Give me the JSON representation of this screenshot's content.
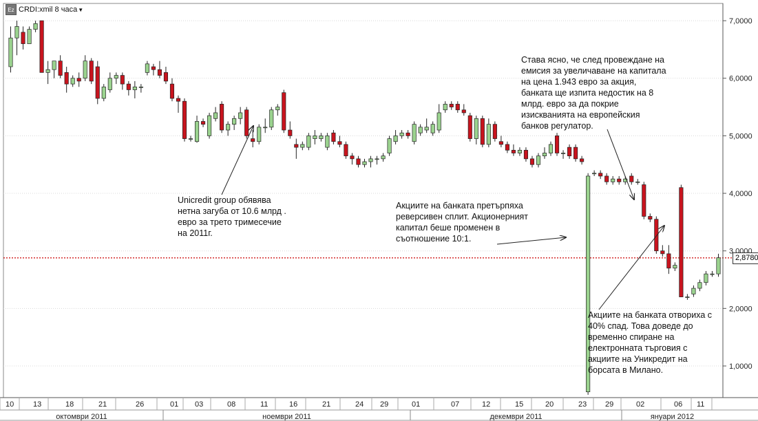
{
  "header": {
    "logo_text": "Ez",
    "ticker_label": "CRDI:xmil 8 часа",
    "dropdown_icon": "caret-down-icon"
  },
  "colors": {
    "up": "#9bd38f",
    "down": "#c8141e",
    "last_price_line": "#cc0000",
    "grid": "#d8d8d8"
  },
  "last_price": {
    "value": 2.878,
    "label": "2,8780"
  },
  "chart_data": {
    "type": "candlestick",
    "title": "",
    "xlabel": "",
    "ylabel": "",
    "ylim": [
      0.45,
      7.3
    ],
    "yticks": [
      {
        "value": 1,
        "label": "1,0000"
      },
      {
        "value": 2,
        "label": "2,0000"
      },
      {
        "value": 3,
        "label": "3,0000"
      },
      {
        "value": 4,
        "label": "4,0000"
      },
      {
        "value": 5,
        "label": "5,0000"
      },
      {
        "value": 6,
        "label": "6,0000"
      },
      {
        "value": 7,
        "label": "7,0000"
      }
    ],
    "grid": "y",
    "legend": "none",
    "x_day_labels": [
      "10",
      "13",
      "18",
      "21",
      "26",
      "01",
      "03",
      "08",
      "11",
      "16",
      "21",
      "24",
      "29",
      "01",
      "07",
      "12",
      "15",
      "20",
      "23",
      "29",
      "02",
      "06",
      "11"
    ],
    "x_month_labels": [
      "октомври 2011",
      "ноември 2011",
      "декември 2011",
      "януари 2012"
    ],
    "candles": [
      {
        "o": 6.2,
        "h": 6.9,
        "l": 6.1,
        "c": 6.7
      },
      {
        "o": 6.7,
        "h": 7.0,
        "l": 6.4,
        "c": 6.9
      },
      {
        "o": 6.8,
        "h": 6.9,
        "l": 6.5,
        "c": 6.6
      },
      {
        "o": 6.6,
        "h": 6.9,
        "l": 6.6,
        "c": 6.85
      },
      {
        "o": 6.85,
        "h": 7.0,
        "l": 6.8,
        "c": 6.95
      },
      {
        "o": 7.0,
        "h": 7.0,
        "l": 6.1,
        "c": 6.1
      },
      {
        "o": 6.1,
        "h": 6.3,
        "l": 5.9,
        "c": 6.15
      },
      {
        "o": 6.15,
        "h": 6.3,
        "l": 6.0,
        "c": 6.3
      },
      {
        "o": 6.3,
        "h": 6.4,
        "l": 6.0,
        "c": 6.05
      },
      {
        "o": 6.1,
        "h": 6.2,
        "l": 5.75,
        "c": 5.9
      },
      {
        "o": 5.9,
        "h": 6.05,
        "l": 5.85,
        "c": 6.0
      },
      {
        "o": 6.0,
        "h": 6.1,
        "l": 5.85,
        "c": 5.95
      },
      {
        "o": 6.0,
        "h": 6.4,
        "l": 5.95,
        "c": 6.3
      },
      {
        "o": 6.3,
        "h": 6.35,
        "l": 5.9,
        "c": 5.95
      },
      {
        "o": 6.2,
        "h": 6.3,
        "l": 5.55,
        "c": 5.65
      },
      {
        "o": 5.65,
        "h": 5.9,
        "l": 5.6,
        "c": 5.85
      },
      {
        "o": 5.8,
        "h": 6.1,
        "l": 5.75,
        "c": 6.0
      },
      {
        "o": 6.0,
        "h": 6.1,
        "l": 5.9,
        "c": 6.05
      },
      {
        "o": 6.05,
        "h": 6.1,
        "l": 5.8,
        "c": 5.9
      },
      {
        "o": 5.9,
        "h": 5.95,
        "l": 5.7,
        "c": 5.8
      },
      {
        "o": 5.8,
        "h": 5.95,
        "l": 5.65,
        "c": 5.85
      },
      {
        "o": 5.85,
        "h": 5.9,
        "l": 5.75,
        "c": 5.85
      },
      {
        "o": 6.1,
        "h": 6.3,
        "l": 6.05,
        "c": 6.25
      },
      {
        "o": 6.2,
        "h": 6.25,
        "l": 6.05,
        "c": 6.15
      },
      {
        "o": 6.15,
        "h": 6.3,
        "l": 6.0,
        "c": 6.05
      },
      {
        "o": 6.1,
        "h": 6.2,
        "l": 5.9,
        "c": 5.95
      },
      {
        "o": 5.9,
        "h": 6.0,
        "l": 5.6,
        "c": 5.65
      },
      {
        "o": 5.65,
        "h": 5.7,
        "l": 5.4,
        "c": 5.6
      },
      {
        "o": 5.6,
        "h": 5.65,
        "l": 4.9,
        "c": 4.95
      },
      {
        "o": 4.95,
        "h": 5.0,
        "l": 4.9,
        "c": 4.95
      },
      {
        "o": 4.9,
        "h": 5.35,
        "l": 4.88,
        "c": 5.25
      },
      {
        "o": 5.25,
        "h": 5.3,
        "l": 5.15,
        "c": 5.2
      },
      {
        "o": 5.0,
        "h": 5.4,
        "l": 4.95,
        "c": 5.35
      },
      {
        "o": 5.3,
        "h": 5.5,
        "l": 5.25,
        "c": 5.4
      },
      {
        "o": 5.55,
        "h": 5.6,
        "l": 5.05,
        "c": 5.1
      },
      {
        "o": 5.1,
        "h": 5.25,
        "l": 5.0,
        "c": 5.2
      },
      {
        "o": 5.2,
        "h": 5.35,
        "l": 5.1,
        "c": 5.3
      },
      {
        "o": 5.3,
        "h": 5.5,
        "l": 5.2,
        "c": 5.4
      },
      {
        "o": 5.45,
        "h": 5.5,
        "l": 4.95,
        "c": 5.0
      },
      {
        "o": 4.95,
        "h": 5.1,
        "l": 4.8,
        "c": 4.9
      },
      {
        "o": 4.9,
        "h": 5.2,
        "l": 4.85,
        "c": 5.15
      },
      {
        "o": 5.15,
        "h": 5.3,
        "l": 5.05,
        "c": 5.15
      },
      {
        "o": 5.15,
        "h": 5.5,
        "l": 5.1,
        "c": 5.45
      },
      {
        "o": 5.45,
        "h": 5.55,
        "l": 5.35,
        "c": 5.5
      },
      {
        "o": 5.75,
        "h": 5.8,
        "l": 5.05,
        "c": 5.1
      },
      {
        "o": 5.1,
        "h": 5.25,
        "l": 4.95,
        "c": 5.0
      },
      {
        "o": 4.85,
        "h": 4.95,
        "l": 4.6,
        "c": 4.8
      },
      {
        "o": 4.8,
        "h": 4.9,
        "l": 4.75,
        "c": 4.85
      },
      {
        "o": 4.8,
        "h": 5.05,
        "l": 4.75,
        "c": 5.0
      },
      {
        "o": 4.95,
        "h": 5.1,
        "l": 4.85,
        "c": 5.0
      },
      {
        "o": 4.95,
        "h": 5.05,
        "l": 4.9,
        "c": 5.0
      },
      {
        "o": 4.8,
        "h": 5.05,
        "l": 4.75,
        "c": 5.0
      },
      {
        "o": 5.05,
        "h": 5.1,
        "l": 4.85,
        "c": 4.9
      },
      {
        "o": 4.9,
        "h": 5.0,
        "l": 4.8,
        "c": 4.85
      },
      {
        "o": 4.85,
        "h": 4.9,
        "l": 4.6,
        "c": 4.65
      },
      {
        "o": 4.65,
        "h": 4.7,
        "l": 4.5,
        "c": 4.6
      },
      {
        "o": 4.6,
        "h": 4.65,
        "l": 4.45,
        "c": 4.5
      },
      {
        "o": 4.5,
        "h": 4.6,
        "l": 4.45,
        "c": 4.55
      },
      {
        "o": 4.55,
        "h": 4.65,
        "l": 4.45,
        "c": 4.6
      },
      {
        "o": 4.6,
        "h": 4.65,
        "l": 4.5,
        "c": 4.6
      },
      {
        "o": 4.6,
        "h": 4.7,
        "l": 4.55,
        "c": 4.65
      },
      {
        "o": 4.7,
        "h": 5.0,
        "l": 4.65,
        "c": 4.95
      },
      {
        "o": 4.9,
        "h": 5.1,
        "l": 4.85,
        "c": 5.0
      },
      {
        "o": 5.0,
        "h": 5.1,
        "l": 4.95,
        "c": 5.05
      },
      {
        "o": 5.05,
        "h": 5.1,
        "l": 4.95,
        "c": 5.0
      },
      {
        "o": 4.9,
        "h": 5.25,
        "l": 4.85,
        "c": 5.2
      },
      {
        "o": 5.05,
        "h": 5.2,
        "l": 5.0,
        "c": 5.15
      },
      {
        "o": 5.1,
        "h": 5.3,
        "l": 5.05,
        "c": 5.15
      },
      {
        "o": 5.05,
        "h": 5.25,
        "l": 5.0,
        "c": 5.2
      },
      {
        "o": 5.1,
        "h": 5.55,
        "l": 5.05,
        "c": 5.4
      },
      {
        "o": 5.45,
        "h": 5.6,
        "l": 5.4,
        "c": 5.55
      },
      {
        "o": 5.55,
        "h": 5.6,
        "l": 5.45,
        "c": 5.5
      },
      {
        "o": 5.55,
        "h": 5.6,
        "l": 5.4,
        "c": 5.45
      },
      {
        "o": 5.45,
        "h": 5.55,
        "l": 5.35,
        "c": 5.4
      },
      {
        "o": 5.35,
        "h": 5.4,
        "l": 4.9,
        "c": 4.95
      },
      {
        "o": 4.95,
        "h": 5.35,
        "l": 4.85,
        "c": 5.3
      },
      {
        "o": 5.3,
        "h": 5.35,
        "l": 4.8,
        "c": 4.85
      },
      {
        "o": 4.85,
        "h": 5.3,
        "l": 4.8,
        "c": 5.2
      },
      {
        "o": 5.2,
        "h": 5.25,
        "l": 4.9,
        "c": 4.95
      },
      {
        "o": 4.9,
        "h": 5.0,
        "l": 4.8,
        "c": 4.85
      },
      {
        "o": 4.85,
        "h": 4.9,
        "l": 4.7,
        "c": 4.75
      },
      {
        "o": 4.75,
        "h": 4.85,
        "l": 4.65,
        "c": 4.7
      },
      {
        "o": 4.7,
        "h": 4.8,
        "l": 4.65,
        "c": 4.75
      },
      {
        "o": 4.75,
        "h": 4.8,
        "l": 4.55,
        "c": 4.6
      },
      {
        "o": 4.6,
        "h": 4.65,
        "l": 4.45,
        "c": 4.5
      },
      {
        "o": 4.5,
        "h": 4.7,
        "l": 4.45,
        "c": 4.65
      },
      {
        "o": 4.65,
        "h": 4.8,
        "l": 4.6,
        "c": 4.7
      },
      {
        "o": 4.7,
        "h": 4.9,
        "l": 4.65,
        "c": 4.85
      },
      {
        "o": 5.0,
        "h": 5.05,
        "l": 4.65,
        "c": 4.7
      },
      {
        "o": 4.7,
        "h": 4.75,
        "l": 4.6,
        "c": 4.7
      },
      {
        "o": 4.8,
        "h": 4.85,
        "l": 4.6,
        "c": 4.65
      },
      {
        "o": 4.8,
        "h": 4.85,
        "l": 4.55,
        "c": 4.6
      },
      {
        "o": 4.6,
        "h": 4.65,
        "l": 4.5,
        "c": 4.55
      },
      {
        "o": 0.55,
        "h": 4.35,
        "l": 0.5,
        "c": 4.3
      },
      {
        "o": 4.35,
        "h": 4.4,
        "l": 4.3,
        "c": 4.35
      },
      {
        "o": 4.35,
        "h": 4.4,
        "l": 4.25,
        "c": 4.3
      },
      {
        "o": 4.3,
        "h": 4.35,
        "l": 4.15,
        "c": 4.2
      },
      {
        "o": 4.2,
        "h": 4.3,
        "l": 4.15,
        "c": 4.25
      },
      {
        "o": 4.25,
        "h": 4.3,
        "l": 4.15,
        "c": 4.2
      },
      {
        "o": 4.2,
        "h": 4.3,
        "l": 4.15,
        "c": 4.25
      },
      {
        "o": 4.3,
        "h": 4.35,
        "l": 4.15,
        "c": 4.2
      },
      {
        "o": 4.2,
        "h": 4.25,
        "l": 4.15,
        "c": 4.2
      },
      {
        "o": 4.15,
        "h": 4.2,
        "l": 3.55,
        "c": 3.6
      },
      {
        "o": 3.6,
        "h": 3.65,
        "l": 3.5,
        "c": 3.55
      },
      {
        "o": 3.55,
        "h": 3.6,
        "l": 2.95,
        "c": 3.0
      },
      {
        "o": 3.0,
        "h": 3.1,
        "l": 2.9,
        "c": 2.95
      },
      {
        "o": 2.95,
        "h": 3.1,
        "l": 2.6,
        "c": 2.7
      },
      {
        "o": 2.7,
        "h": 2.8,
        "l": 2.65,
        "c": 2.75
      },
      {
        "o": 4.1,
        "h": 4.15,
        "l": 2.2,
        "c": 2.2
      },
      {
        "o": 2.2,
        "h": 2.25,
        "l": 2.15,
        "c": 2.2
      },
      {
        "o": 2.25,
        "h": 2.4,
        "l": 2.2,
        "c": 2.35
      },
      {
        "o": 2.35,
        "h": 2.5,
        "l": 2.3,
        "c": 2.45
      },
      {
        "o": 2.45,
        "h": 2.65,
        "l": 2.4,
        "c": 2.6
      },
      {
        "o": 2.6,
        "h": 2.65,
        "l": 2.55,
        "c": 2.6
      },
      {
        "o": 2.6,
        "h": 2.95,
        "l": 2.55,
        "c": 2.88
      }
    ],
    "annotations": [
      {
        "id": "unicredit-loss",
        "text": "Unicredit group обявява\nнетна загуба от 10.6 млрд .\nевро за трето тримесечие\nна 2011г."
      },
      {
        "id": "reverse-split",
        "text": "Акциите на банката претърпяха\nреверсивен сплит. Акционерният\nкапитал беше променен в\nсъотношение 10:1."
      },
      {
        "id": "capital-deficit",
        "text": "Става ясно, че след провеждане на\nемисия за увеличаване на капитала\nна цена 1.943 евро за акция,\nбанката ще изпита недостик на 8\nмлрд. евро за да покрие\nизискванията на европейския\nбанков регулатор."
      },
      {
        "id": "drop-40pct",
        "text": "Акциите на банката отвориха с\n40% спад. Това доведе до\nвременно спиране на\nелектронната търговия с\nакциите на Уникредит на\nборсата в Милано."
      }
    ]
  }
}
